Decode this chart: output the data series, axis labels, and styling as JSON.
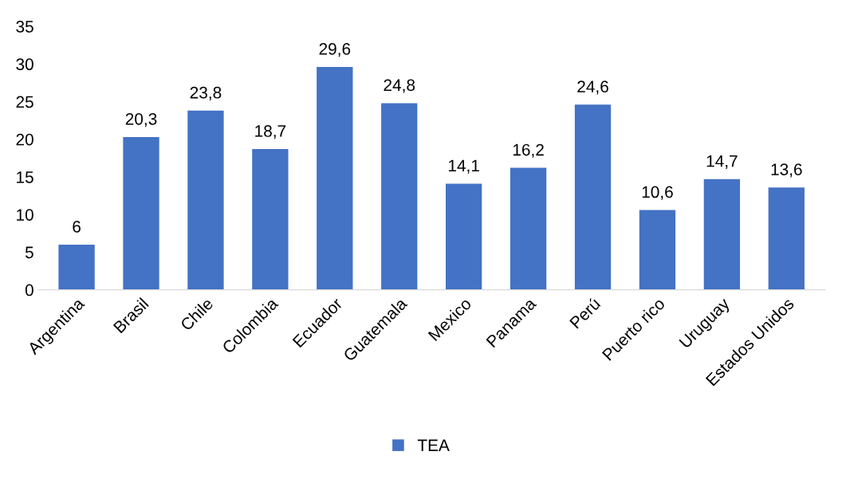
{
  "chart_data": {
    "type": "bar",
    "categories": [
      "Argentina",
      "Brasil",
      "Chile",
      "Colombia",
      "Ecuador",
      "Guatemala",
      "Mexico",
      "Panama",
      "Perú",
      "Puerto rico",
      "Uruguay",
      "Estados Unidos"
    ],
    "series": [
      {
        "name": "TEA",
        "color": "#4472c4",
        "values": [
          6,
          20.3,
          23.8,
          18.7,
          29.6,
          24.8,
          14.1,
          16.2,
          24.6,
          10.6,
          14.7,
          13.6
        ],
        "value_labels": [
          "6",
          "20,3",
          "23,8",
          "18,7",
          "29,6",
          "24,8",
          "14,1",
          "16,2",
          "24,6",
          "10,6",
          "14,7",
          "13,6"
        ]
      }
    ],
    "ylim": [
      0,
      35
    ],
    "yticks": [
      0,
      5,
      10,
      15,
      20,
      25,
      30,
      35
    ],
    "grid": false,
    "legend": "bottom"
  }
}
